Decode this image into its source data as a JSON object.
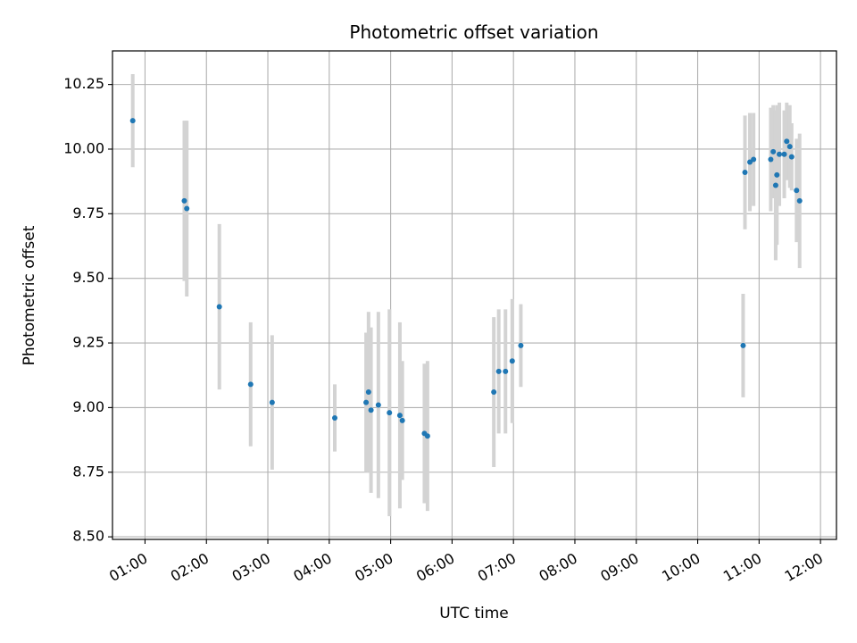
{
  "chart_data": {
    "type": "scatter",
    "title": "Photometric offset variation",
    "xlabel": "UTC time",
    "ylabel": "Photometric offset",
    "x_unit": "hours UTC",
    "xlim": [
      0.47,
      12.26
    ],
    "ylim": [
      8.49,
      10.38
    ],
    "x_ticks": [
      1,
      2,
      3,
      4,
      5,
      6,
      7,
      8,
      9,
      10,
      11,
      12
    ],
    "x_tick_labels": [
      "01:00",
      "02:00",
      "03:00",
      "04:00",
      "05:00",
      "06:00",
      "07:00",
      "08:00",
      "09:00",
      "10:00",
      "11:00",
      "12:00"
    ],
    "y_ticks": [
      8.5,
      8.75,
      9.0,
      9.25,
      9.5,
      9.75,
      10.0,
      10.25
    ],
    "y_tick_labels": [
      "8.50",
      "8.75",
      "9.00",
      "9.25",
      "9.50",
      "9.75",
      "10.00",
      "10.25"
    ],
    "grid": true,
    "point_color": "#1f77b4",
    "errorbar_color": "#d3d3d3",
    "points": [
      {
        "x": 0.8,
        "y": 10.11,
        "err": 0.18
      },
      {
        "x": 1.64,
        "y": 9.8,
        "err": 0.31
      },
      {
        "x": 1.68,
        "y": 9.77,
        "err": 0.34
      },
      {
        "x": 2.21,
        "y": 9.39,
        "err": 0.32
      },
      {
        "x": 2.72,
        "y": 9.09,
        "err": 0.24
      },
      {
        "x": 3.07,
        "y": 9.02,
        "err": 0.26
      },
      {
        "x": 4.09,
        "y": 8.96,
        "err": 0.13
      },
      {
        "x": 4.6,
        "y": 9.02,
        "err": 0.27
      },
      {
        "x": 4.64,
        "y": 9.06,
        "err": 0.31
      },
      {
        "x": 4.68,
        "y": 8.99,
        "err": 0.32
      },
      {
        "x": 4.8,
        "y": 9.01,
        "err": 0.36
      },
      {
        "x": 4.98,
        "y": 8.98,
        "err": 0.4
      },
      {
        "x": 5.15,
        "y": 8.97,
        "err": 0.36
      },
      {
        "x": 5.19,
        "y": 8.95,
        "err": 0.23
      },
      {
        "x": 5.55,
        "y": 8.9,
        "err": 0.27
      },
      {
        "x": 5.6,
        "y": 8.89,
        "err": 0.29
      },
      {
        "x": 6.68,
        "y": 9.06,
        "err": 0.29
      },
      {
        "x": 6.76,
        "y": 9.14,
        "err": 0.24
      },
      {
        "x": 6.87,
        "y": 9.14,
        "err": 0.24
      },
      {
        "x": 6.98,
        "y": 9.18,
        "err": 0.24
      },
      {
        "x": 7.12,
        "y": 9.24,
        "err": 0.16
      },
      {
        "x": 10.74,
        "y": 9.24,
        "err": 0.2
      },
      {
        "x": 10.77,
        "y": 9.91,
        "err": 0.22
      },
      {
        "x": 10.85,
        "y": 9.95,
        "err": 0.19
      },
      {
        "x": 10.91,
        "y": 9.96,
        "err": 0.18
      },
      {
        "x": 11.19,
        "y": 9.96,
        "err": 0.2
      },
      {
        "x": 11.23,
        "y": 9.99,
        "err": 0.18
      },
      {
        "x": 11.27,
        "y": 9.86,
        "err": 0.29
      },
      {
        "x": 11.29,
        "y": 9.9,
        "err": 0.27
      },
      {
        "x": 11.33,
        "y": 9.98,
        "err": 0.2
      },
      {
        "x": 11.41,
        "y": 9.98,
        "err": 0.17
      },
      {
        "x": 11.45,
        "y": 10.03,
        "err": 0.15
      },
      {
        "x": 11.5,
        "y": 10.01,
        "err": 0.16
      },
      {
        "x": 11.53,
        "y": 9.97,
        "err": 0.13
      },
      {
        "x": 11.61,
        "y": 9.84,
        "err": 0.2
      },
      {
        "x": 11.66,
        "y": 9.8,
        "err": 0.26
      }
    ]
  }
}
